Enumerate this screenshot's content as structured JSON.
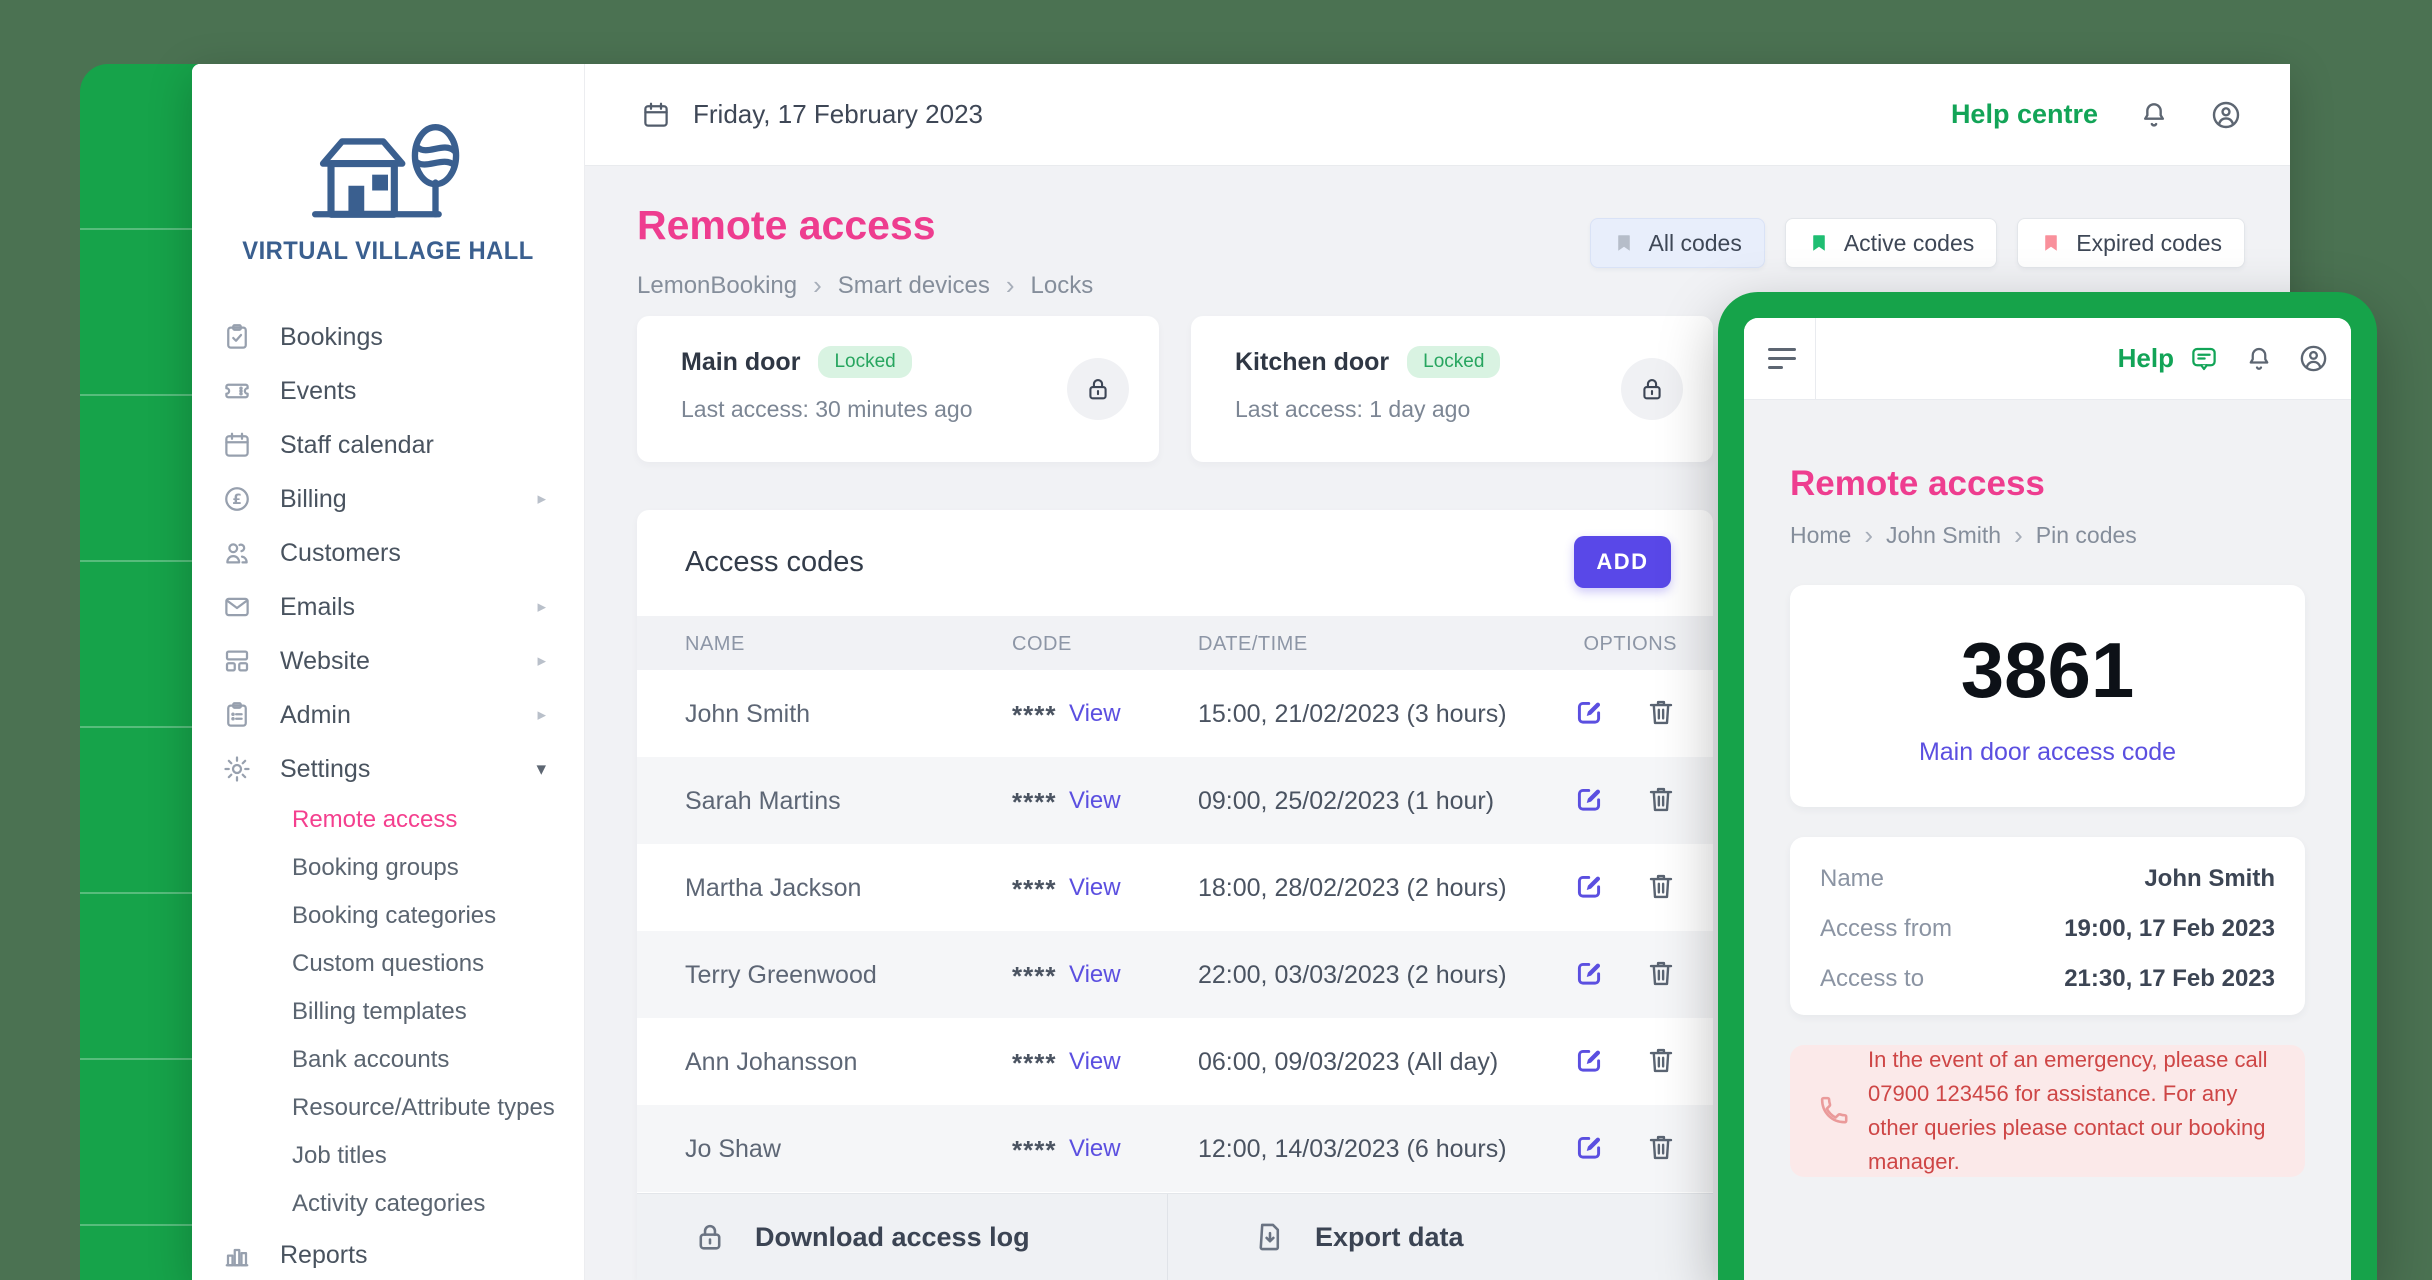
{
  "colors": {
    "brand_green": "#16a34a",
    "canvas_sage": "#4b7252",
    "heading_pink": "#ee3d8f",
    "primary_indigo": "#5948e8",
    "link_indigo": "#5b4fe0",
    "alert_red": "#ce4646",
    "locked_green": "#27a55f"
  },
  "topbar": {
    "date": "Friday, 17 February 2023",
    "help": "Help centre"
  },
  "sidebar": {
    "logo": "VIRTUAL VILLAGE HALL",
    "items": [
      {
        "label": "Bookings",
        "icon": "clipboard-check"
      },
      {
        "label": "Events",
        "icon": "ticket"
      },
      {
        "label": "Staff calendar",
        "icon": "calendar"
      },
      {
        "label": "Billing",
        "icon": "pound",
        "chevron": "▸"
      },
      {
        "label": "Customers",
        "icon": "people"
      },
      {
        "label": "Emails",
        "icon": "envelope",
        "chevron": "▸"
      },
      {
        "label": "Website",
        "icon": "browser",
        "chevron": "▸"
      },
      {
        "label": "Admin",
        "icon": "clipboard-list",
        "chevron": "▸"
      },
      {
        "label": "Settings",
        "icon": "gear",
        "chevron": "▾",
        "open": true
      }
    ],
    "settings_children": [
      {
        "label": "Remote access",
        "active": true
      },
      {
        "label": "Booking groups"
      },
      {
        "label": "Booking categories"
      },
      {
        "label": "Custom questions"
      },
      {
        "label": "Billing templates"
      },
      {
        "label": "Bank accounts"
      },
      {
        "label": "Resource/Attribute types"
      },
      {
        "label": "Job titles"
      },
      {
        "label": "Activity categories"
      }
    ],
    "footer_item": {
      "label": "Reports",
      "icon": "bar-chart"
    }
  },
  "page": {
    "title": "Remote access",
    "breadcrumb": [
      "LemonBooking",
      "Smart devices",
      "Locks"
    ],
    "filters": [
      {
        "label": "All codes",
        "color": "#b6bdc9",
        "selected": true
      },
      {
        "label": "Active codes",
        "color": "#1fbe72"
      },
      {
        "label": "Expired codes",
        "color": "#f9909b"
      }
    ]
  },
  "doors": [
    {
      "name": "Main door",
      "status": "Locked",
      "last_access": "Last access: 30 minutes ago"
    },
    {
      "name": "Kitchen door",
      "status": "Locked",
      "last_access": "Last access: 1 day ago"
    }
  ],
  "codes": {
    "title": "Access codes",
    "add": "ADD",
    "columns": [
      "NAME",
      "CODE",
      "DATE/TIME",
      "OPTIONS"
    ],
    "rows": [
      {
        "name": "John Smith",
        "mask": "****",
        "view": "View",
        "datetime": "15:00, 21/02/2023 (3 hours)"
      },
      {
        "name": "Sarah Martins",
        "mask": "****",
        "view": "View",
        "datetime": "09:00, 25/02/2023 (1 hour)"
      },
      {
        "name": "Martha Jackson",
        "mask": "****",
        "view": "View",
        "datetime": "18:00, 28/02/2023 (2 hours)"
      },
      {
        "name": "Terry Greenwood",
        "mask": "****",
        "view": "View",
        "datetime": "22:00, 03/03/2023 (2 hours)"
      },
      {
        "name": "Ann Johansson",
        "mask": "****",
        "view": "View",
        "datetime": "06:00, 09/03/2023 (All day)"
      },
      {
        "name": "Jo Shaw",
        "mask": "****",
        "view": "View",
        "datetime": "12:00, 14/03/2023 (6 hours)"
      }
    ],
    "download": "Download access log",
    "export": "Export data"
  },
  "phone": {
    "help": "Help",
    "title": "Remote access",
    "breadcrumb": [
      "Home",
      "John Smith",
      "Pin codes"
    ],
    "pin": "3861",
    "pin_label": "Main door access code",
    "details": [
      {
        "label": "Name",
        "value": "John Smith"
      },
      {
        "label": "Access from",
        "value": "19:00, 17 Feb 2023"
      },
      {
        "label": "Access to",
        "value": "21:30, 17 Feb 2023"
      }
    ],
    "emergency": "In the event of an emergency, please call 07900 123456 for assistance. For any other queries please contact our booking manager."
  }
}
